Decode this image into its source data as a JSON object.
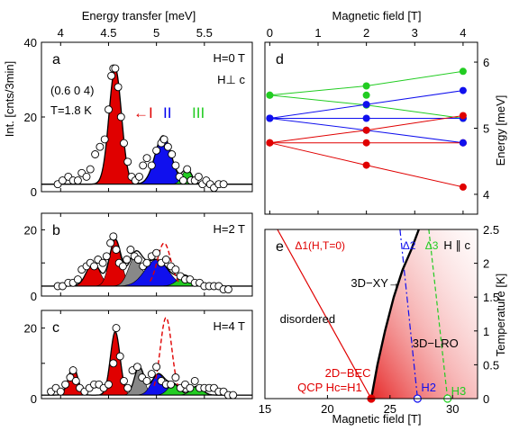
{
  "figure": {
    "left_top_axis_label": "Energy transfer [meV]",
    "left_y_axis_label": "Int. [cnts/3min]",
    "right_top_axis_label": "Magnetic field [T]",
    "right_mid_y_label": "Energy [meV]",
    "right_bottom_x_label": "Magnetic field [T]",
    "right_bottom_y_label": "Temperature [K]"
  },
  "chart_data": [
    {
      "id": "a",
      "type": "area",
      "panel_letter": "a",
      "field_label": "H=0 T",
      "orientation_label": "H⊥ c",
      "q_label": "(0.6 0 4)",
      "temp_label": "T=1.8 K",
      "mode_labels": [
        {
          "text": "←I",
          "color": "#e00000"
        },
        {
          "text": "II",
          "color": "#0000ee"
        },
        {
          "text": "III",
          "color": "#22cc22"
        }
      ],
      "xlim": [
        3.8,
        6.0
      ],
      "ylim": [
        0,
        40
      ],
      "xticks": [
        4,
        4.5,
        5,
        5.5
      ],
      "xtick_labels": [
        "4",
        "4.5",
        "5",
        "5.5"
      ],
      "yticks": [
        0,
        20,
        40
      ],
      "ytick_labels": [
        "0",
        "20",
        "40"
      ],
      "background": 2,
      "peaks": [
        {
          "center": 4.57,
          "height": 31,
          "width": 0.065,
          "color": "#e00000"
        },
        {
          "center": 5.07,
          "height": 13,
          "width": 0.085,
          "color": "#1010ee"
        },
        {
          "center": 5.32,
          "height": 4,
          "width": 0.05,
          "color": "#22cc22"
        }
      ],
      "points": {
        "x": [
          3.97,
          4.02,
          4.08,
          4.13,
          4.18,
          4.22,
          4.27,
          4.31,
          4.36,
          4.41,
          4.46,
          4.5,
          4.53,
          4.55,
          4.57,
          4.6,
          4.63,
          4.66,
          4.7,
          4.74,
          4.78,
          4.82,
          4.86,
          4.9,
          4.95,
          5.0,
          5.05,
          5.08,
          5.12,
          5.16,
          5.2,
          5.24,
          5.28,
          5.32,
          5.36,
          5.4,
          5.44,
          5.48,
          5.52,
          5.56,
          5.6,
          5.65,
          5.7
        ],
        "y": [
          2,
          3,
          4,
          3,
          3,
          5,
          4,
          6,
          10,
          12,
          14,
          22,
          31,
          33,
          33,
          28,
          20,
          13,
          8,
          4,
          3,
          4,
          7,
          9,
          7,
          11,
          13,
          14,
          12,
          10,
          7,
          4,
          3,
          6,
          3,
          3,
          4,
          2,
          3,
          2,
          1,
          2,
          2
        ]
      }
    },
    {
      "id": "b",
      "type": "area",
      "panel_letter": "b",
      "field_label": "H=2 T",
      "xlim": [
        3.8,
        6.0
      ],
      "ylim": [
        0,
        25
      ],
      "yticks": [
        0,
        10,
        20
      ],
      "ytick_labels": [
        "0",
        "",
        "20"
      ],
      "background": 3,
      "peaks": [
        {
          "center": 4.34,
          "height": 7,
          "width": 0.07,
          "color": "#e00000"
        },
        {
          "center": 4.57,
          "height": 14,
          "width": 0.06,
          "color": "#e00000"
        },
        {
          "center": 4.78,
          "height": 9,
          "width": 0.07,
          "color": "#888888"
        },
        {
          "center": 5.0,
          "height": 8,
          "width": 0.12,
          "color": "#1010ee"
        },
        {
          "center": 5.3,
          "height": 3,
          "width": 0.08,
          "color": "#22cc22"
        }
      ],
      "points": {
        "x": [
          3.97,
          4.02,
          4.08,
          4.13,
          4.18,
          4.22,
          4.27,
          4.31,
          4.35,
          4.39,
          4.44,
          4.48,
          4.52,
          4.55,
          4.58,
          4.61,
          4.65,
          4.69,
          4.73,
          4.77,
          4.81,
          4.86,
          4.9,
          4.95,
          5.0,
          5.05,
          5.1,
          5.15,
          5.2,
          5.25,
          5.3,
          5.35,
          5.4,
          5.45,
          5.5,
          5.55,
          5.6,
          5.65,
          5.7,
          5.75
        ],
        "y": [
          3,
          3,
          4,
          4,
          5,
          8,
          9,
          10,
          9,
          11,
          10,
          12,
          16,
          18,
          14,
          10,
          9,
          11,
          14,
          12,
          11,
          9,
          10,
          12,
          13,
          10,
          11,
          9,
          8,
          6,
          5,
          5,
          4,
          4,
          3,
          3,
          3,
          3,
          2,
          2
        ]
      },
      "dashed": {
        "center": 5.08,
        "height": 13,
        "width": 0.07,
        "color": "#e00000"
      }
    },
    {
      "id": "c",
      "type": "area",
      "panel_letter": "c",
      "field_label": "H=4 T",
      "xlim": [
        3.8,
        6.0
      ],
      "ylim": [
        0,
        25
      ],
      "yticks": [
        0,
        10,
        20
      ],
      "ytick_labels": [
        "0",
        "",
        "20"
      ],
      "xticks": [
        4,
        4.5,
        5,
        5.5
      ],
      "background": 1,
      "peaks": [
        {
          "center": 4.13,
          "height": 8,
          "width": 0.05,
          "color": "#e00000"
        },
        {
          "center": 4.57,
          "height": 18,
          "width": 0.05,
          "color": "#e00000"
        },
        {
          "center": 4.82,
          "height": 8,
          "width": 0.05,
          "color": "#888888"
        },
        {
          "center": 5.02,
          "height": 6,
          "width": 0.07,
          "color": "#1010ee"
        },
        {
          "center": 5.18,
          "height": 3,
          "width": 0.06,
          "color": "#22cc22"
        },
        {
          "center": 5.42,
          "height": 2.5,
          "width": 0.06,
          "color": "#22cc22"
        }
      ],
      "points": {
        "x": [
          3.9,
          3.95,
          4.0,
          4.05,
          4.1,
          4.13,
          4.16,
          4.2,
          4.25,
          4.3,
          4.35,
          4.4,
          4.45,
          4.5,
          4.55,
          4.58,
          4.62,
          4.66,
          4.7,
          4.75,
          4.8,
          4.85,
          4.9,
          4.95,
          5.0,
          5.05,
          5.1,
          5.15,
          5.2,
          5.25,
          5.3,
          5.35,
          5.4,
          5.45,
          5.5,
          5.55,
          5.6,
          5.65,
          5.7,
          5.75,
          5.8
        ],
        "y": [
          2,
          3,
          2,
          4,
          6,
          8,
          5,
          3,
          2,
          3,
          4,
          4,
          3,
          4,
          10,
          20,
          12,
          5,
          3,
          8,
          9,
          6,
          5,
          7,
          9,
          5,
          4,
          4,
          6,
          3,
          4,
          3,
          5,
          3,
          3,
          3,
          3,
          2,
          2,
          1,
          1
        ]
      },
      "dashed": {
        "center": 5.1,
        "height": 22,
        "width": 0.06,
        "color": "#e00000"
      }
    },
    {
      "id": "d",
      "type": "line",
      "panel_letter": "d",
      "xlim": [
        -0.1,
        4.3
      ],
      "ylim": [
        3.7,
        6.3
      ],
      "xticks": [
        0,
        1,
        2,
        3,
        4
      ],
      "xtick_labels": [
        "0",
        "1",
        "2",
        "3",
        "4"
      ],
      "yticks": [
        4,
        5,
        6
      ],
      "ytick_labels": [
        "4",
        "5",
        "6"
      ],
      "series": [
        {
          "color": "#22cc22",
          "x": [
            0,
            2,
            4
          ],
          "y": [
            5.5,
            5.64,
            5.86
          ]
        },
        {
          "color": "#22cc22",
          "x": [
            0,
            2,
            4
          ],
          "y": [
            5.5,
            5.35,
            5.15
          ]
        },
        {
          "color": "#1010ee",
          "x": [
            0,
            2,
            4
          ],
          "y": [
            5.15,
            5.36,
            5.57
          ]
        },
        {
          "color": "#1010ee",
          "x": [
            0,
            2,
            4
          ],
          "y": [
            5.15,
            5.15,
            5.15
          ]
        },
        {
          "color": "#1010ee",
          "x": [
            0,
            2,
            4
          ],
          "y": [
            5.15,
            4.97,
            4.78
          ]
        },
        {
          "color": "#e00000",
          "x": [
            0,
            2,
            4
          ],
          "y": [
            4.78,
            4.97,
            5.19
          ]
        },
        {
          "color": "#e00000",
          "x": [
            0,
            2,
            4
          ],
          "y": [
            4.78,
            4.78,
            4.78
          ]
        },
        {
          "color": "#e00000",
          "x": [
            0,
            2,
            4
          ],
          "y": [
            4.78,
            4.44,
            4.11
          ]
        }
      ],
      "extra_points": [
        {
          "color": "#1010ee",
          "x": 4,
          "y": 4.78
        },
        {
          "color": "#22cc22",
          "x": 2,
          "y": 5.5
        }
      ]
    },
    {
      "id": "e",
      "type": "line",
      "panel_letter": "e",
      "orientation_label": "H ∥ c",
      "xlim": [
        15,
        32
      ],
      "ylim": [
        0,
        2.5
      ],
      "xticks": [
        15,
        20,
        25,
        30
      ],
      "xtick_labels": [
        "15",
        "20",
        "25",
        "30"
      ],
      "yticks": [
        0,
        0.5,
        1,
        1.5,
        2,
        2.5
      ],
      "ytick_labels": [
        "0",
        "0.5",
        "1",
        "1.5",
        "2",
        "2.5"
      ],
      "labels": {
        "delta1": "Δ1(H,T=0)",
        "delta2": "Δ2",
        "delta3": "Δ3",
        "xy": "3D−XY→",
        "disordered": "disordered",
        "lro": "3D−LRO",
        "bec_line1": "2D−BEC",
        "bec_line2": "QCP Hc=H1",
        "h2": "H2",
        "h3": "H3"
      },
      "phase_boundary": {
        "x": [
          23.5,
          24.0,
          24.6,
          25.3,
          26.0,
          26.7,
          27.3
        ],
        "y": [
          0,
          0.5,
          1.0,
          1.5,
          1.9,
          2.2,
          2.5
        ],
        "color": "#000000"
      },
      "delta1_line": {
        "x": [
          16.0,
          23.5
        ],
        "y": [
          2.5,
          0
        ],
        "color": "#e00000"
      },
      "delta2_line": {
        "x": [
          25.8,
          27.2
        ],
        "y": [
          2.5,
          0
        ],
        "color": "#1010ee"
      },
      "delta3_line": {
        "x": [
          28.1,
          29.6
        ],
        "y": [
          2.5,
          0
        ],
        "color": "#22cc22"
      },
      "critical_points": [
        {
          "name": "H1",
          "x": 23.5,
          "y": 0,
          "color": "#e00000"
        },
        {
          "name": "H2",
          "x": 27.2,
          "y": 0,
          "color": "#1010ee"
        },
        {
          "name": "H3",
          "x": 29.6,
          "y": 0,
          "color": "#22cc22"
        }
      ]
    }
  ]
}
